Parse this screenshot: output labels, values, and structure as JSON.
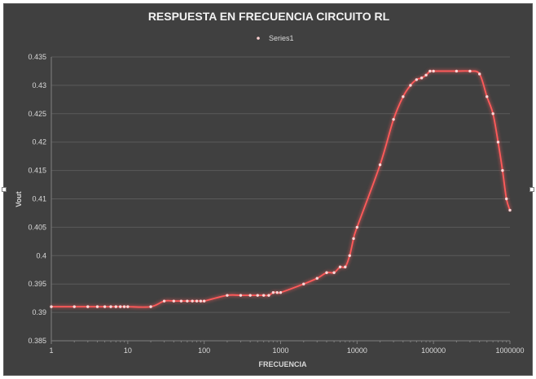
{
  "chart_data": {
    "type": "scatter",
    "title": "RESPUESTA EN FRECUENCIA CIRCUITO RL",
    "xlabel": "FRECUENCIA",
    "ylabel": "Vout",
    "x_scale": "log",
    "xlim": [
      1,
      1000000
    ],
    "ylim": [
      0.385,
      0.435
    ],
    "x_tick_labels": [
      "1",
      "10",
      "100",
      "1000",
      "10000",
      "100000",
      "1000000"
    ],
    "y_tick_labels": [
      "0.385",
      "0.39",
      "0.395",
      "0.4",
      "0.405",
      "0.41",
      "0.415",
      "0.42",
      "0.425",
      "0.43",
      "0.435"
    ],
    "grid": "horizontal",
    "legend_position": "top",
    "series": [
      {
        "name": "Series1",
        "color": "#ff5a5a",
        "x": [
          1,
          2,
          3,
          4,
          5,
          6,
          7,
          8,
          9,
          10,
          20,
          30,
          40,
          50,
          60,
          70,
          80,
          90,
          100,
          200,
          300,
          400,
          500,
          600,
          700,
          800,
          900,
          1000,
          2000,
          3000,
          4000,
          5000,
          6000,
          7000,
          8000,
          9000,
          10000,
          20000,
          30000,
          40000,
          50000,
          60000,
          70000,
          80000,
          90000,
          100000,
          200000,
          300000,
          400000,
          500000,
          600000,
          700000,
          800000,
          900000,
          1000000
        ],
        "y": [
          0.391,
          0.391,
          0.391,
          0.391,
          0.391,
          0.391,
          0.391,
          0.391,
          0.391,
          0.391,
          0.391,
          0.392,
          0.392,
          0.392,
          0.392,
          0.392,
          0.392,
          0.392,
          0.392,
          0.393,
          0.393,
          0.393,
          0.393,
          0.393,
          0.393,
          0.3935,
          0.3935,
          0.3935,
          0.395,
          0.396,
          0.397,
          0.397,
          0.398,
          0.398,
          0.4,
          0.403,
          0.405,
          0.416,
          0.424,
          0.428,
          0.43,
          0.431,
          0.4313,
          0.4318,
          0.4325,
          0.4325,
          0.4325,
          0.4325,
          0.432,
          0.428,
          0.425,
          0.42,
          0.415,
          0.41,
          0.408
        ]
      }
    ]
  }
}
